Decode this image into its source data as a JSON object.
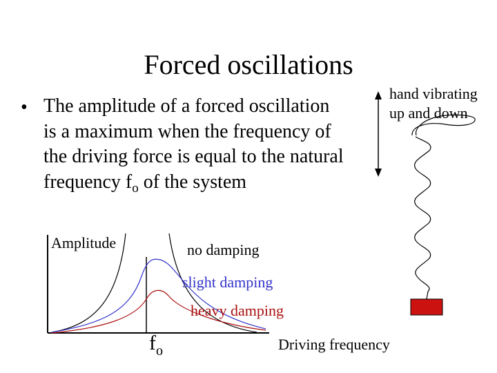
{
  "title": "Forced oscillations",
  "bullet": {
    "text_before_sub": "The amplitude of a forced oscillation is a maximum when the frequency of the driving force is equal to the natural frequency f",
    "sub": "o",
    "text_after_sub": " of the system"
  },
  "hand_label": {
    "line1": "hand vibrating",
    "line2": "up and down"
  },
  "graph": {
    "y_axis_label": "Amplitude",
    "x_axis_label": "Driving frequency",
    "marker_label": "f",
    "marker_sub": "o",
    "curves": [
      {
        "label": "no damping",
        "color": "#000000"
      },
      {
        "label": "slight damping",
        "color": "#3333cc"
      },
      {
        "label": "heavy damping",
        "color": "#aa1111"
      }
    ]
  },
  "colors": {
    "mass_block": "#cc1111",
    "text": "#000000"
  }
}
